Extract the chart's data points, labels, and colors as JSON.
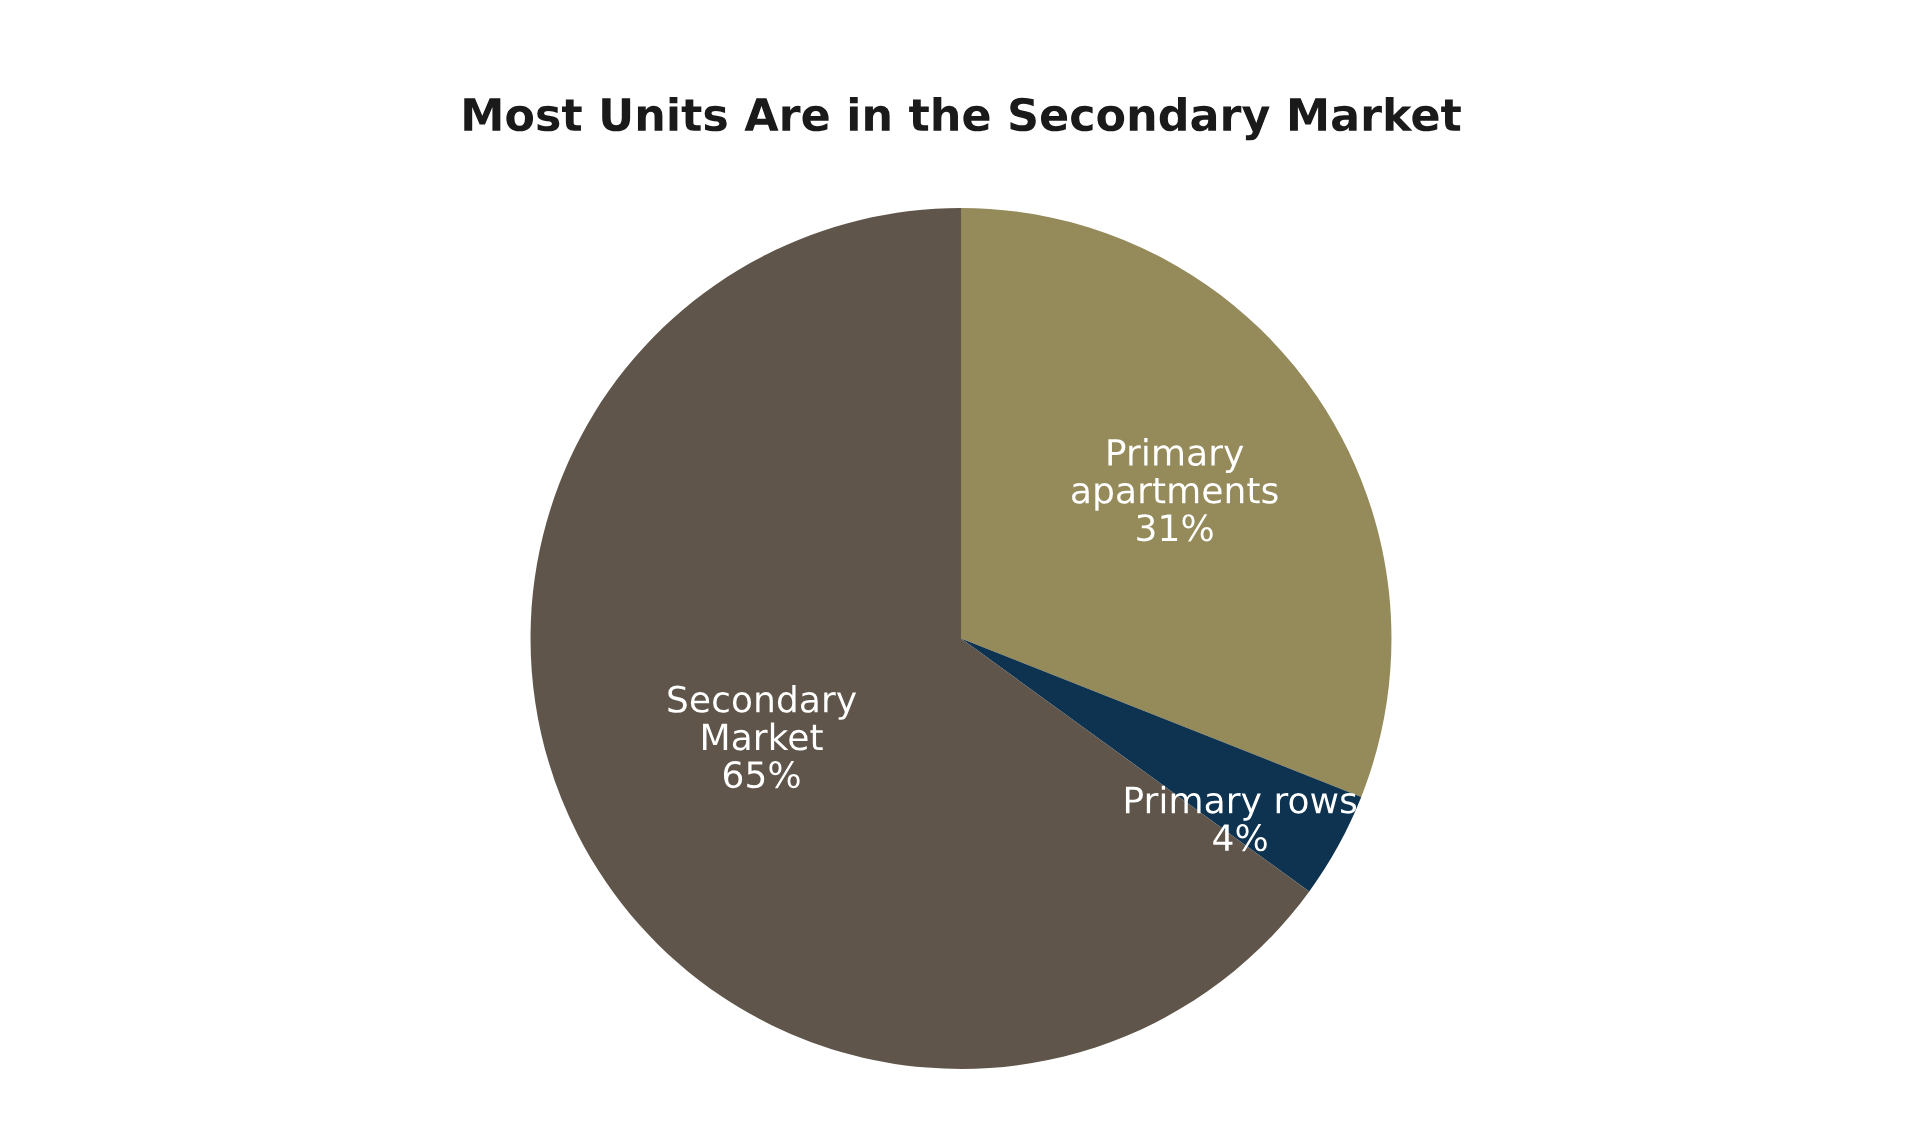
{
  "chart_data": {
    "type": "pie",
    "title": "Most Units Are in the Secondary Market",
    "categories": [
      "Primary apartments",
      "Primary rows",
      "Secondary Market"
    ],
    "values": [
      31,
      4,
      65
    ],
    "colors": [
      "#958a5a",
      "#0d3350",
      "#5f554b"
    ],
    "value_labels": [
      "31%",
      "4%",
      "65%"
    ]
  }
}
